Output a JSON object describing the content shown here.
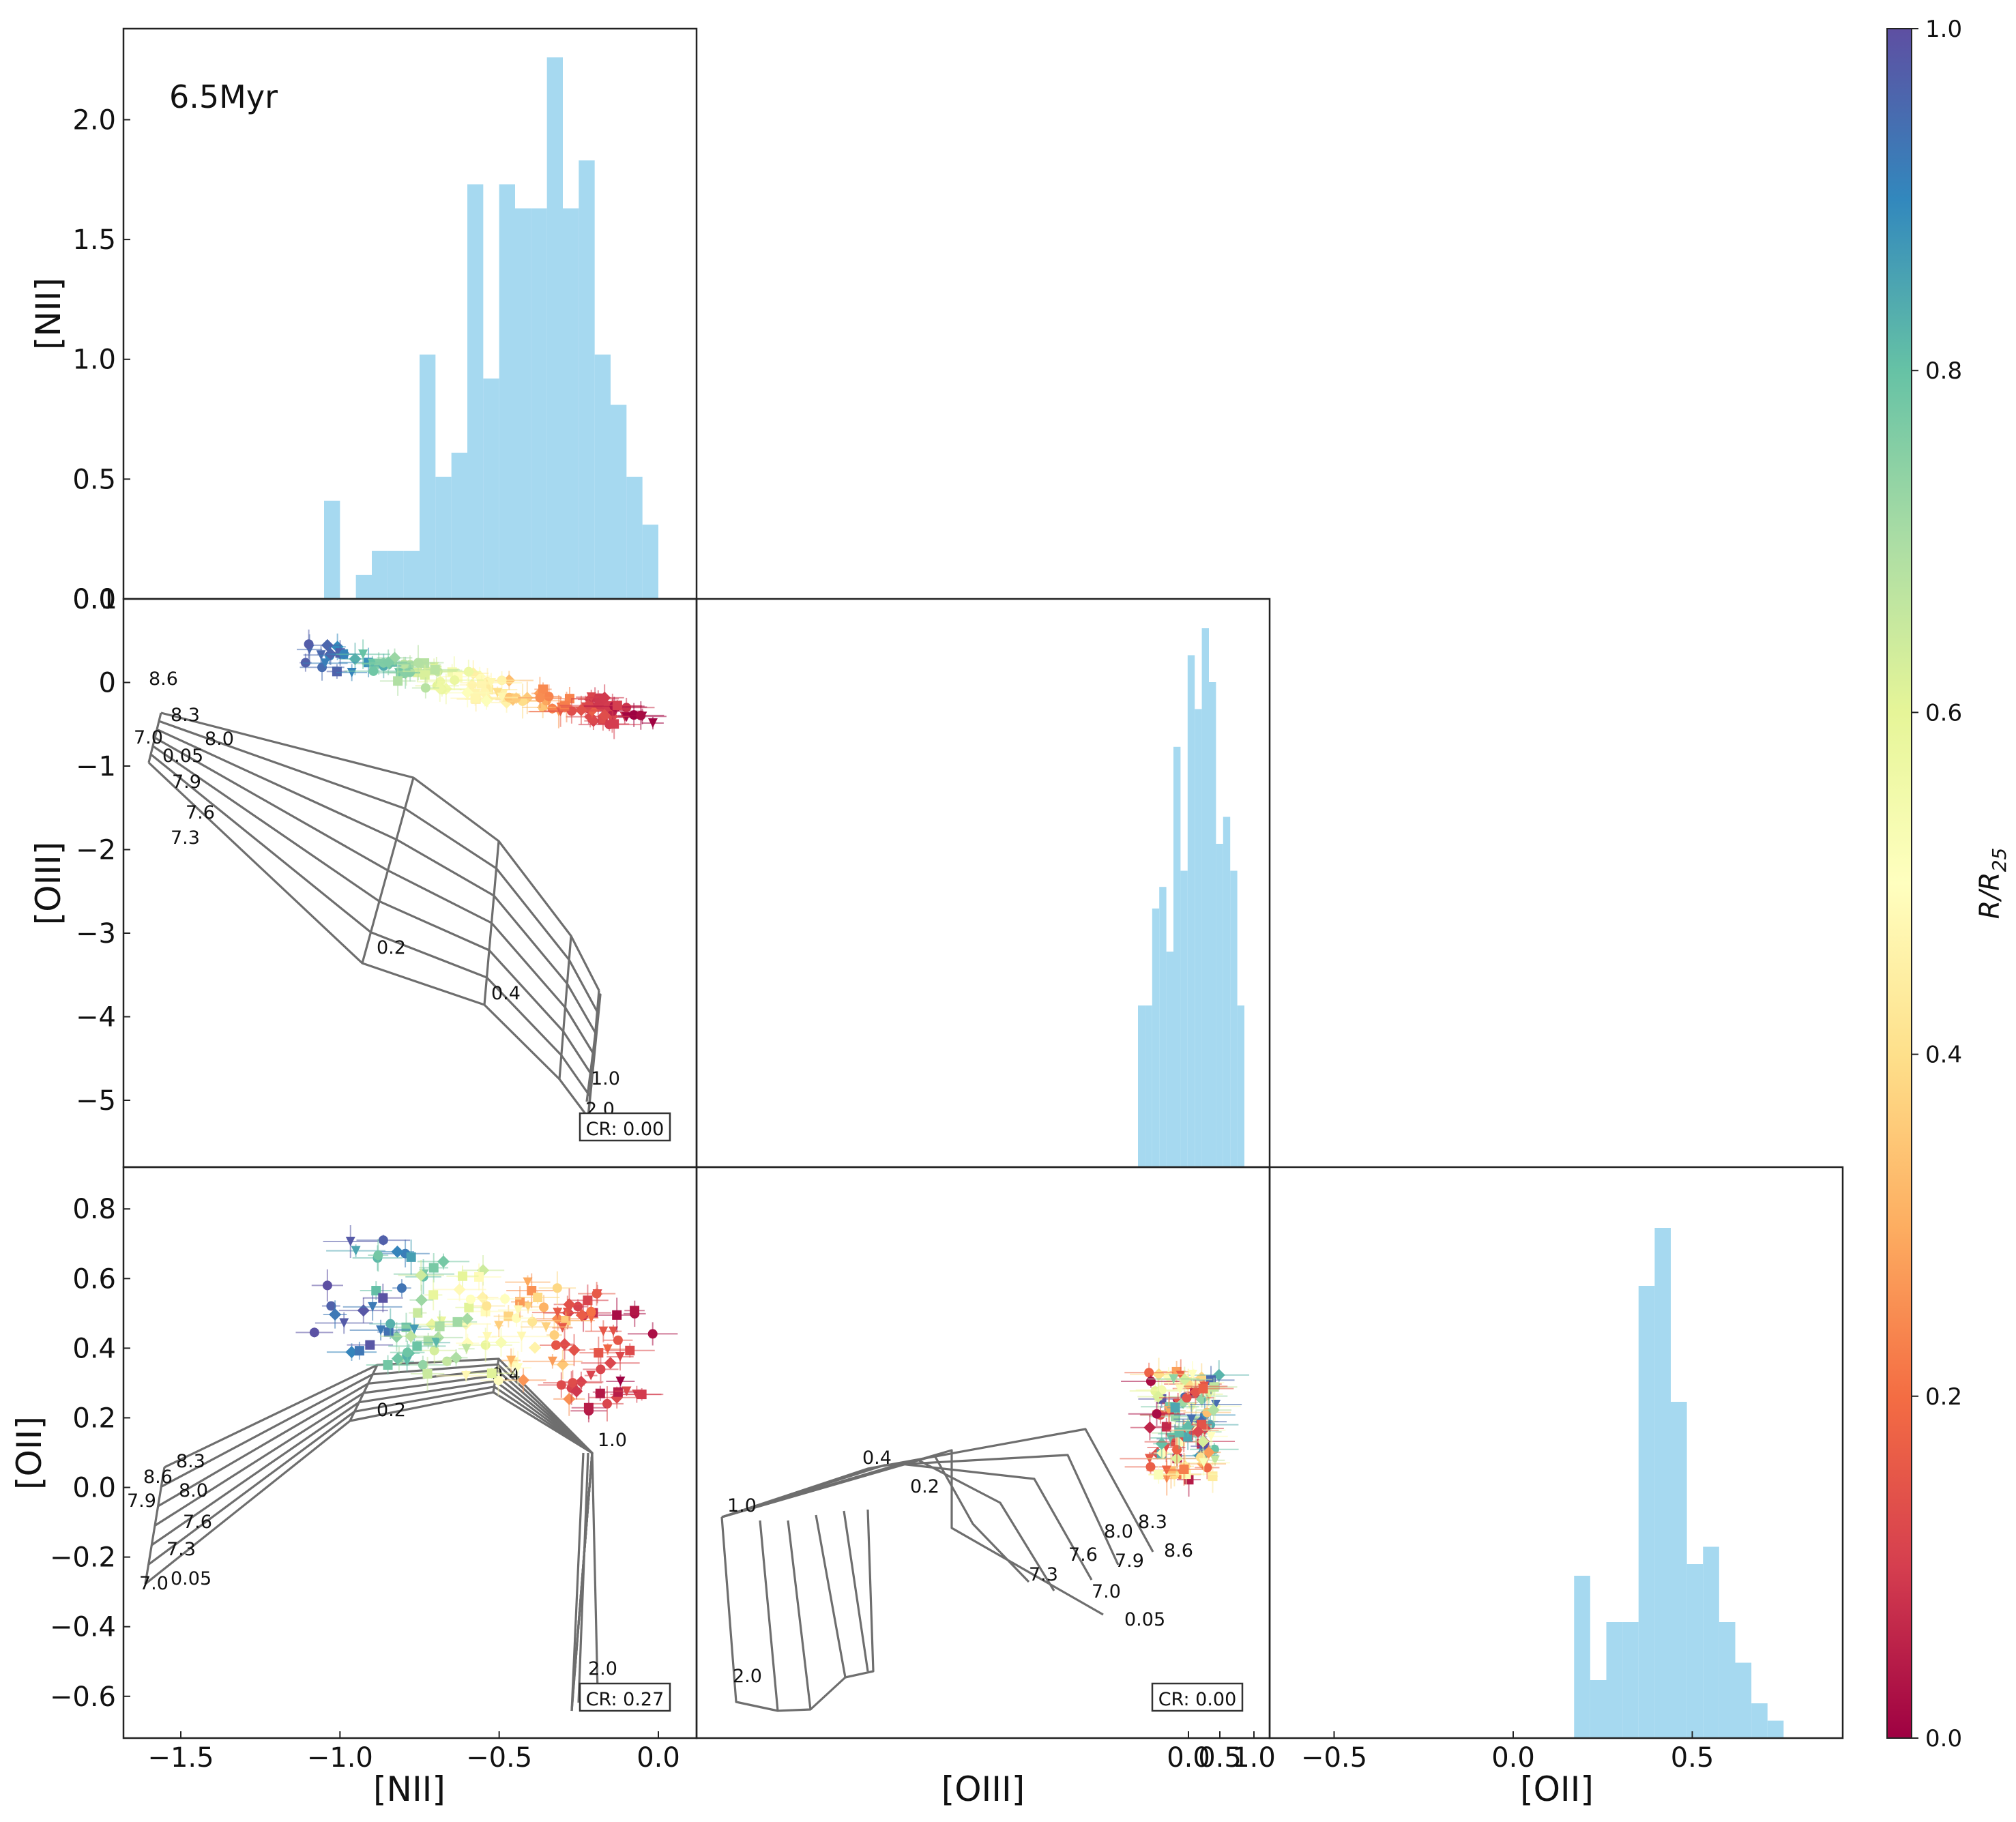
{
  "figure": {
    "age_label": "6.5Myr"
  },
  "colorbar": {
    "label": "R/R",
    "label_sub": "25",
    "min": 0.0,
    "max": 1.0,
    "ticks": [
      "0.0",
      "0.2",
      "0.4",
      "0.6",
      "0.8",
      "1.0"
    ],
    "colormap": [
      "#9e0142",
      "#d53e4f",
      "#f46d43",
      "#fdae61",
      "#fee08b",
      "#ffffbf",
      "#e6f598",
      "#abdda4",
      "#66c2a5",
      "#3288bd",
      "#5e4fa2"
    ]
  },
  "colors": {
    "hist": "#a6d9f0",
    "grid_lines": "#6e6e6e",
    "axes": "#222222"
  },
  "chart_data": [
    {
      "id": "hist_nii",
      "type": "bar",
      "title": "",
      "xlabel": "",
      "ylabel": "[NII]",
      "xlim": [
        -1.68,
        0.12
      ],
      "ylim": [
        0.0,
        2.38
      ],
      "yticks": [
        "0.0",
        "0.5",
        "1.0",
        "1.5",
        "2.0"
      ],
      "bin_left": [
        -1.05,
        -1.0,
        -0.95,
        -0.9,
        -0.85,
        -0.8,
        -0.75,
        -0.7,
        -0.65,
        -0.6,
        -0.55,
        -0.5,
        -0.45,
        -0.4,
        -0.35,
        -0.3,
        -0.25,
        -0.2,
        -0.15,
        -0.1,
        -0.05
      ],
      "bin_width": 0.05,
      "values": [
        0.41,
        0.0,
        0.1,
        0.2,
        0.2,
        0.2,
        1.02,
        0.51,
        0.61,
        1.73,
        0.92,
        1.73,
        1.63,
        1.63,
        2.26,
        1.63,
        1.83,
        1.02,
        0.81,
        0.51,
        0.31
      ],
      "annotation": "6.5Myr"
    },
    {
      "id": "scatter_oiii_nii",
      "type": "scatter",
      "xlabel": "",
      "ylabel": "[OIII]",
      "xlim": [
        -1.68,
        0.12
      ],
      "ylim": [
        -5.8,
        1.0
      ],
      "yticks": [
        "1",
        "0",
        "−1",
        "−2",
        "−3",
        "−4",
        "−5"
      ],
      "model_grid_labels": {
        "metallicity": [
          "8.6",
          "8.3",
          "8.0",
          "7.0",
          "7.9",
          "7.6",
          "7.3"
        ],
        "ionization": [
          "0.05",
          "0.2",
          "0.4",
          "1.0",
          "2.0"
        ]
      },
      "cr_label": "CR: 0.00"
    },
    {
      "id": "hist_oiii",
      "type": "bar",
      "xlabel": "",
      "ylabel": "",
      "bin_left": [
        -0.72,
        -0.69,
        -0.66,
        -0.63,
        -0.6,
        -0.57,
        -0.54,
        -0.51,
        -0.48,
        -0.45,
        -0.42,
        -0.39,
        -0.36,
        -0.33,
        -0.3
      ],
      "bin_width": 0.03,
      "values": [
        0.3,
        0.3,
        0.48,
        0.52,
        0.4,
        0.78,
        0.55,
        0.95,
        0.85,
        1.0,
        0.9,
        0.6,
        0.65,
        0.55,
        0.3
      ]
    },
    {
      "id": "scatter_oii_nii",
      "type": "scatter",
      "xlabel": "[NII]",
      "ylabel": "[OII]",
      "xlim": [
        -1.68,
        0.12
      ],
      "ylim": [
        -0.72,
        0.92
      ],
      "xticks": [
        "−1.5",
        "−1.0",
        "−0.5",
        "0.0"
      ],
      "yticks": [
        "0.8",
        "0.6",
        "0.4",
        "0.2",
        "0.0",
        "−0.2",
        "−0.4",
        "−0.6"
      ],
      "model_grid_labels": {
        "metallicity": [
          "8.6",
          "8.3",
          "8.0",
          "7.9",
          "7.6",
          "7.3",
          "7.0"
        ],
        "ionization": [
          "0.05",
          "0.2",
          "0.4",
          "1.0",
          "2.0"
        ]
      },
      "cr_label": "CR: 0.27"
    },
    {
      "id": "scatter_oii_oiii",
      "type": "scatter",
      "xlabel": "[OIII]",
      "ylabel": "",
      "xticks": [
        "0.0",
        "0.5",
        "1.0"
      ],
      "model_grid_labels": {
        "metallicity": [
          "8.3",
          "8.0",
          "8.6",
          "7.6",
          "7.9",
          "7.3",
          "7.0"
        ],
        "ionization": [
          "0.4",
          "0.2",
          "1.0",
          "2.0",
          "0.05"
        ]
      },
      "cr_label": "CR: 0.00"
    },
    {
      "id": "hist_oii",
      "type": "bar",
      "xlabel": "[OII]",
      "ylabel": "",
      "xlim": [
        -0.68,
        0.92
      ],
      "xticks": [
        "−0.5",
        "0.0",
        "0.5"
      ],
      "bin_left": [
        0.17,
        0.215,
        0.26,
        0.305,
        0.35,
        0.395,
        0.44,
        0.485,
        0.53,
        0.575,
        0.62,
        0.665,
        0.71
      ],
      "bin_width": 0.045,
      "values": [
        0.28,
        0.1,
        0.2,
        0.2,
        0.78,
        0.88,
        0.58,
        0.3,
        0.33,
        0.2,
        0.13,
        0.06,
        0.03
      ]
    }
  ]
}
